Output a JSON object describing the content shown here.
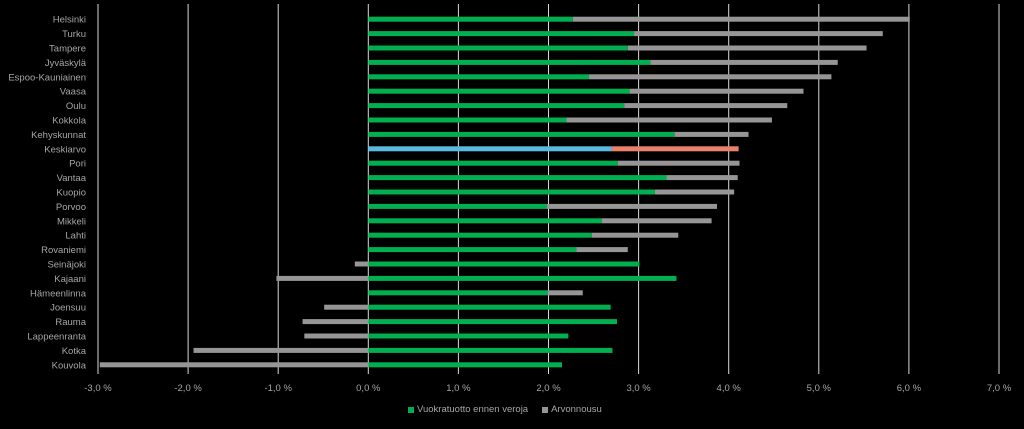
{
  "chart_data": {
    "type": "bar",
    "orientation": "horizontal",
    "stacked": true,
    "categories": [
      "Helsinki",
      "Turku",
      "Tampere",
      "Jyväskylä",
      "Espoo-Kauniainen",
      "Vaasa",
      "Oulu",
      "Kokkola",
      "Kehyskunnat",
      "Keskiarvo",
      "Pori",
      "Vantaa",
      "Kuopio",
      "Porvoo",
      "Mikkeli",
      "Lahti",
      "Rovaniemi",
      "Seinäjoki",
      "Kajaani",
      "Hämeenlinna",
      "Joensuu",
      "Rauma",
      "Lappeenranta",
      "Kotka",
      "Kouvola"
    ],
    "series": [
      {
        "name": "Vuokratuotto ennen veroja",
        "color": "#00b050",
        "values": [
          2.27,
          2.95,
          2.88,
          3.13,
          2.45,
          2.9,
          2.84,
          2.2,
          3.4,
          2.7,
          2.77,
          3.31,
          3.18,
          1.98,
          2.59,
          2.48,
          2.31,
          3.01,
          3.42,
          1.99,
          2.69,
          2.76,
          2.22,
          2.71,
          2.15
        ]
      },
      {
        "name": "Arvonnousu",
        "color": "#969696",
        "values": [
          3.74,
          2.76,
          2.65,
          2.08,
          2.69,
          1.93,
          1.81,
          2.28,
          0.82,
          1.41,
          1.35,
          0.79,
          0.88,
          1.89,
          1.22,
          0.96,
          0.57,
          -0.15,
          -1.02,
          0.39,
          -0.49,
          -0.73,
          -0.71,
          -1.94,
          -2.98
        ]
      }
    ],
    "highlight": {
      "category": "Keskiarvo",
      "colors": [
        "#5bb8e0",
        "#e8826b"
      ]
    },
    "xlim": [
      -3.0,
      7.0
    ],
    "x_ticks": [
      "-3,0 %",
      "-2,0 %",
      "-1,0 %",
      "0,0 %",
      "1,0 %",
      "2,0 %",
      "3,0 %",
      "4,0 %",
      "5,0 %",
      "6,0 %",
      "7,0 %"
    ],
    "grid": "vertical",
    "legend_position": "bottom"
  }
}
